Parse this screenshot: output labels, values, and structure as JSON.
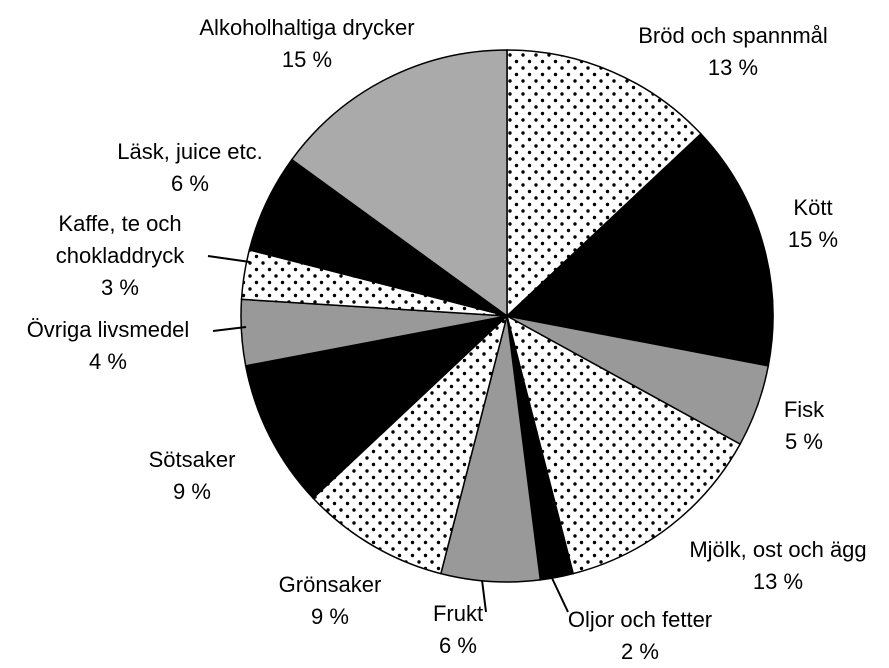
{
  "chart_data": {
    "type": "pie",
    "categories": [
      "Bröd och spannmål",
      "Kött",
      "Fisk",
      "Mjölk, ost och ägg",
      "Oljor och fetter",
      "Frukt",
      "Grönsaker",
      "Sötsaker",
      "Övriga livsmedel",
      "Kaffe, te och chokladdryck",
      "Läsk, juice etc.",
      "Alkoholhaltiga drycker"
    ],
    "values": [
      13,
      15,
      5,
      13,
      2,
      6,
      9,
      9,
      4,
      3,
      6,
      15
    ],
    "value_labels": [
      "13 %",
      "15 %",
      "5 %",
      "13 %",
      "2 %",
      "6 %",
      "9 %",
      "9 %",
      "4 %",
      "3 %",
      "6 %",
      "15 %"
    ],
    "colors": [
      "dots",
      "#000000",
      "#999999",
      "dots",
      "#000000",
      "#999999",
      "dots",
      "#000000",
      "#999999",
      "dots",
      "#000000",
      "#aaaaaa"
    ]
  }
}
